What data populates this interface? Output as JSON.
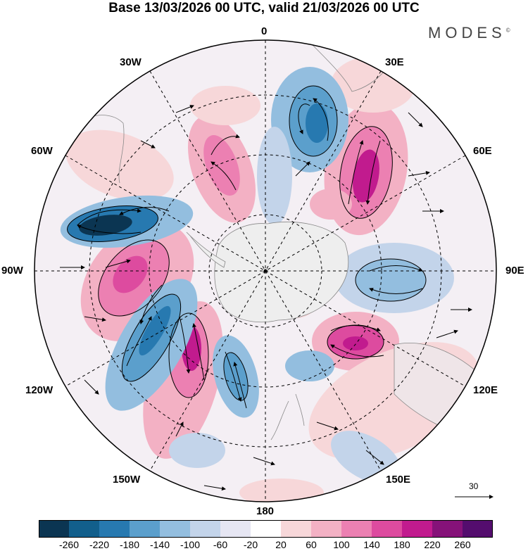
{
  "header": {
    "title": "Base 13/03/2026 00 UTC, valid 21/03/2026 00 UTC",
    "brand": "MODES",
    "brand_mark": "©"
  },
  "map": {
    "projection": "south-polar-stereographic",
    "longitude_labels": {
      "top": "0",
      "top_right": "30E",
      "right_upper": "60E",
      "right": "90E",
      "right_lower": "120E",
      "bottom_right": "150E",
      "bottom": "180",
      "bottom_left": "150W",
      "left_lower": "120W",
      "left": "90W",
      "left_upper": "60W",
      "top_left": "30W"
    },
    "reference_vector": {
      "label": "30"
    }
  },
  "legend": {
    "ticks": [
      "-260",
      "-220",
      "-180",
      "-140",
      "-100",
      "-60",
      "-20",
      "20",
      "60",
      "100",
      "140",
      "180",
      "220",
      "260"
    ],
    "colors": [
      "#0b3552",
      "#125f8c",
      "#2779b0",
      "#5b9fcc",
      "#93bedf",
      "#c3d4ea",
      "#e6e6f3",
      "#ffffff",
      "#f7d7d9",
      "#f3b1c4",
      "#ec80b2",
      "#dd4b9f",
      "#c11b8e",
      "#861279",
      "#540d6e"
    ]
  }
}
